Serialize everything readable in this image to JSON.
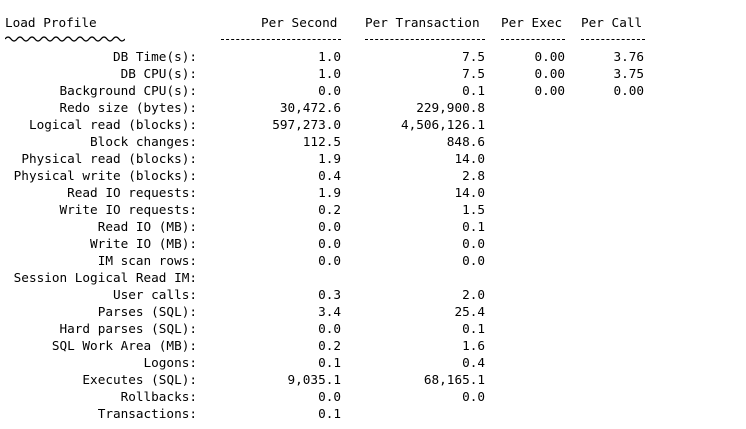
{
  "header": {
    "title": "Load Profile",
    "per_second": "Per Second",
    "per_transaction": "Per Transaction",
    "per_exec": "Per Exec",
    "per_call": "Per Call"
  },
  "rows": [
    {
      "label": "DB Time(s):",
      "per_second": "1.0",
      "per_transaction": "7.5",
      "per_exec": "0.00",
      "per_call": "3.76"
    },
    {
      "label": "DB CPU(s):",
      "per_second": "1.0",
      "per_transaction": "7.5",
      "per_exec": "0.00",
      "per_call": "3.75"
    },
    {
      "label": "Background CPU(s):",
      "per_second": "0.0",
      "per_transaction": "0.1",
      "per_exec": "0.00",
      "per_call": "0.00"
    },
    {
      "label": "Redo size (bytes):",
      "per_second": "30,472.6",
      "per_transaction": "229,900.8",
      "per_exec": "",
      "per_call": ""
    },
    {
      "label": "Logical read (blocks):",
      "per_second": "597,273.0",
      "per_transaction": "4,506,126.1",
      "per_exec": "",
      "per_call": ""
    },
    {
      "label": "Block changes:",
      "per_second": "112.5",
      "per_transaction": "848.6",
      "per_exec": "",
      "per_call": ""
    },
    {
      "label": "Physical read (blocks):",
      "per_second": "1.9",
      "per_transaction": "14.0",
      "per_exec": "",
      "per_call": ""
    },
    {
      "label": "Physical write (blocks):",
      "per_second": "0.4",
      "per_transaction": "2.8",
      "per_exec": "",
      "per_call": ""
    },
    {
      "label": "Read IO requests:",
      "per_second": "1.9",
      "per_transaction": "14.0",
      "per_exec": "",
      "per_call": ""
    },
    {
      "label": "Write IO requests:",
      "per_second": "0.2",
      "per_transaction": "1.5",
      "per_exec": "",
      "per_call": ""
    },
    {
      "label": "Read IO (MB):",
      "per_second": "0.0",
      "per_transaction": "0.1",
      "per_exec": "",
      "per_call": ""
    },
    {
      "label": "Write IO (MB):",
      "per_second": "0.0",
      "per_transaction": "0.0",
      "per_exec": "",
      "per_call": ""
    },
    {
      "label": "IM scan rows:",
      "per_second": "0.0",
      "per_transaction": "0.0",
      "per_exec": "",
      "per_call": ""
    },
    {
      "label": "Session Logical Read IM:",
      "per_second": "",
      "per_transaction": "",
      "per_exec": "",
      "per_call": ""
    },
    {
      "label": "User calls:",
      "per_second": "0.3",
      "per_transaction": "2.0",
      "per_exec": "",
      "per_call": ""
    },
    {
      "label": "Parses (SQL):",
      "per_second": "3.4",
      "per_transaction": "25.4",
      "per_exec": "",
      "per_call": ""
    },
    {
      "label": "Hard parses (SQL):",
      "per_second": "0.0",
      "per_transaction": "0.1",
      "per_exec": "",
      "per_call": ""
    },
    {
      "label": "SQL Work Area (MB):",
      "per_second": "0.2",
      "per_transaction": "1.6",
      "per_exec": "",
      "per_call": ""
    },
    {
      "label": "Logons:",
      "per_second": "0.1",
      "per_transaction": "0.4",
      "per_exec": "",
      "per_call": ""
    },
    {
      "label": "Executes (SQL):",
      "per_second": "9,035.1",
      "per_transaction": "68,165.1",
      "per_exec": "",
      "per_call": ""
    },
    {
      "label": "Rollbacks:",
      "per_second": "0.0",
      "per_transaction": "0.0",
      "per_exec": "",
      "per_call": ""
    },
    {
      "label": "Transactions:",
      "per_second": "0.1",
      "per_transaction": "",
      "per_exec": "",
      "per_call": ""
    }
  ]
}
